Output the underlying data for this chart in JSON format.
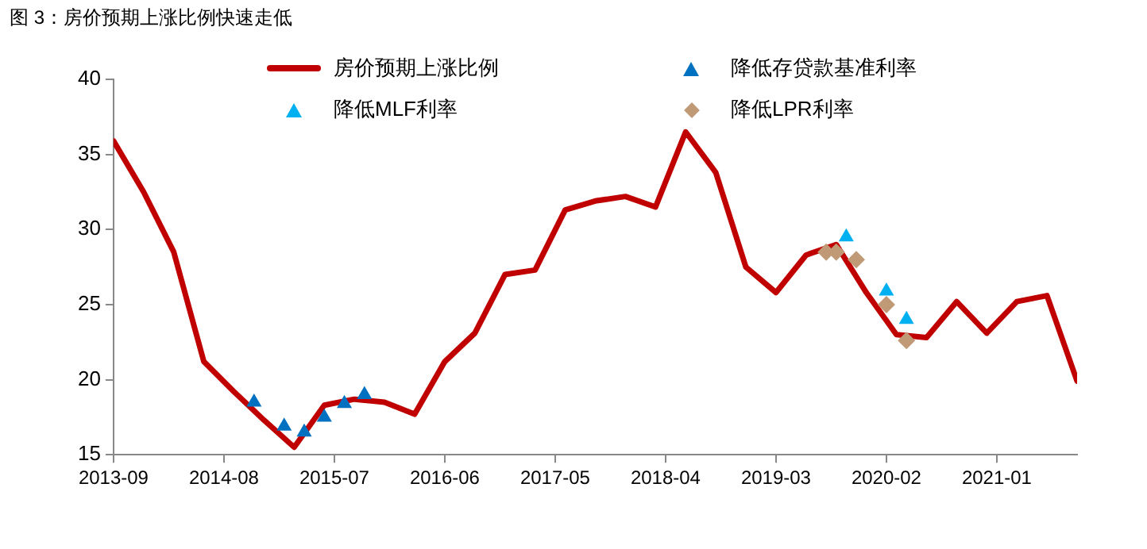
{
  "chart_data": {
    "type": "line",
    "title": "图 3：房价预期上涨比例快速走低",
    "xlim": [
      "2013-09",
      "2021-09"
    ],
    "xticks": [
      "2013-09",
      "2014-08",
      "2015-07",
      "2016-06",
      "2017-05",
      "2018-04",
      "2019-03",
      "2020-02",
      "2021-01"
    ],
    "ylim": [
      15,
      40
    ],
    "yticks": [
      15,
      20,
      25,
      30,
      35,
      40
    ],
    "grid": false,
    "legend": "top",
    "series": [
      {
        "name": "房价预期上涨比例",
        "marker": "none",
        "color": "#c00000",
        "x": [
          "2013-09",
          "2013-12",
          "2014-03",
          "2014-06",
          "2014-09",
          "2014-12",
          "2015-03",
          "2015-06",
          "2015-09",
          "2015-12",
          "2016-03",
          "2016-06",
          "2016-09",
          "2016-12",
          "2017-03",
          "2017-06",
          "2017-09",
          "2017-12",
          "2018-03",
          "2018-06",
          "2018-09",
          "2018-12",
          "2019-03",
          "2019-06",
          "2019-09",
          "2019-12",
          "2020-03",
          "2020-06",
          "2020-09",
          "2020-12",
          "2021-03",
          "2021-06",
          "2021-09"
        ],
        "values": [
          35.9,
          32.5,
          28.5,
          21.2,
          19.2,
          17.3,
          15.5,
          18.3,
          18.7,
          18.5,
          17.7,
          21.2,
          23.1,
          27.0,
          27.3,
          31.3,
          31.9,
          32.2,
          31.5,
          36.5,
          33.8,
          27.5,
          25.8,
          28.3,
          29.0,
          25.8,
          23.0,
          22.8,
          25.2,
          23.1,
          25.2,
          25.6,
          19.9
        ]
      },
      {
        "name": "降低存贷款基准利率",
        "type": "scatter",
        "marker": "triangle",
        "color": "#0070c0",
        "x": [
          "2014-11",
          "2015-02",
          "2015-04",
          "2015-06",
          "2015-08",
          "2015-10"
        ],
        "values": [
          18.5,
          16.9,
          16.5,
          17.5,
          18.4,
          19.0
        ]
      },
      {
        "name": "降低MLF利率",
        "type": "scatter",
        "marker": "triangle",
        "color": "#00b0f0",
        "x": [
          "2019-10",
          "2020-02",
          "2020-04"
        ],
        "values": [
          29.5,
          25.9,
          24.0
        ]
      },
      {
        "name": "降低LPR利率",
        "type": "scatter",
        "marker": "diamond",
        "color": "#c09a76",
        "x": [
          "2019-08",
          "2019-09",
          "2019-11",
          "2020-02",
          "2020-04"
        ],
        "values": [
          28.5,
          28.5,
          28.0,
          25.0,
          22.6
        ]
      }
    ]
  }
}
